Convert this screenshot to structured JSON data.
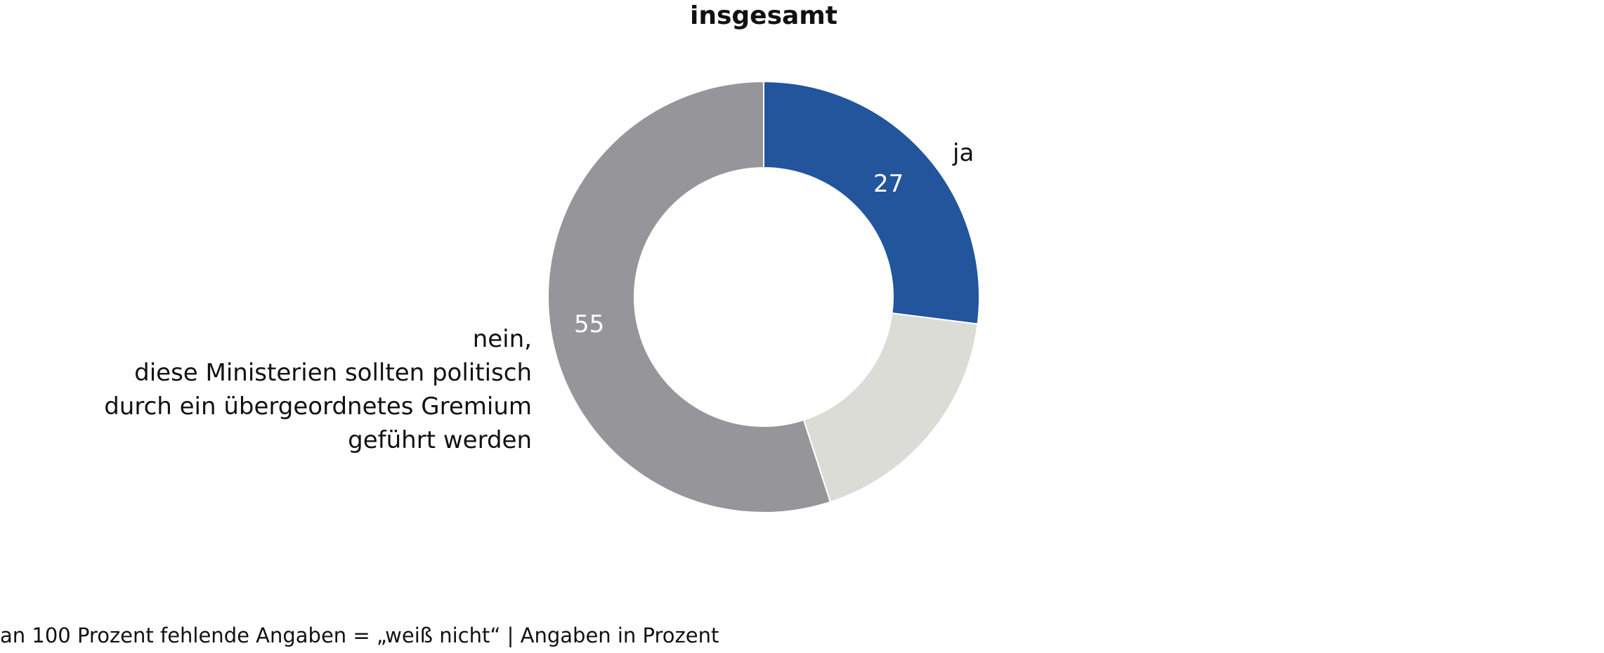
{
  "chart_data": {
    "type": "pie",
    "variant": "donut",
    "title": "insgesamt",
    "slices": [
      {
        "label": "ja",
        "value": 27,
        "value_label": "27",
        "color": "#22559c"
      },
      {
        "label": "",
        "value": 18,
        "value_label": "",
        "color": "#dcdcd7"
      },
      {
        "label": "nein,\ndiese Ministerien sollten politisch\ndurch ein übergeordnetes Gremium\ngeführt werden",
        "label_lines": [
          "nein,",
          "diese Ministerien sollten politisch",
          "durch ein übergeordnetes Gremium",
          "geführt werden"
        ],
        "value": 55,
        "value_label": "55",
        "color": "#96959a"
      }
    ],
    "start_angle": "top, clockwise"
  },
  "footer": "an 100 Prozent fehlende Angaben = „weiß nicht“ | Angaben in Prozent"
}
